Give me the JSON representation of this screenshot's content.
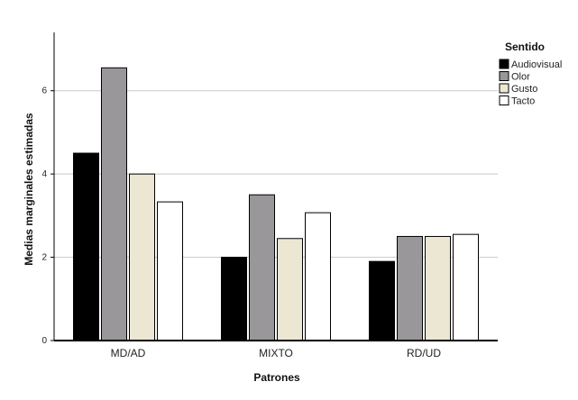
{
  "chart_data": {
    "type": "bar",
    "xlabel": "Patrones",
    "ylabel": "Medias marginales estimadas",
    "categories": [
      "MD/AD",
      "MIXTO",
      "RD/UD"
    ],
    "ylim": [
      0,
      7.4
    ],
    "yticks": [
      0,
      2,
      4,
      6
    ],
    "grid": "horizontal",
    "legend": {
      "title": "Sentido",
      "placement": "top-right"
    },
    "series": [
      {
        "name": "Audiovisual",
        "color": "#000000",
        "values": [
          4.5,
          2.0,
          1.9
        ]
      },
      {
        "name": "Olor",
        "color": "#999799",
        "values": [
          6.55,
          3.5,
          2.5
        ]
      },
      {
        "name": "Gusto",
        "color": "#ece7d3",
        "values": [
          4.0,
          2.45,
          2.5
        ]
      },
      {
        "name": "Tacto",
        "color": "#ffffff",
        "values": [
          3.33,
          3.07,
          2.55
        ]
      }
    ]
  }
}
